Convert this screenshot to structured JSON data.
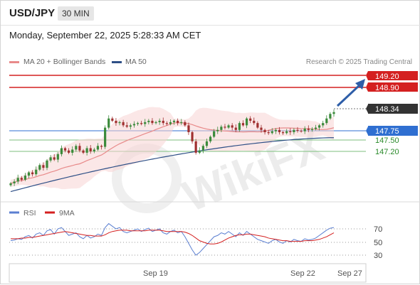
{
  "header": {
    "symbol": "USD/JPY",
    "timeframe": "30 MIN",
    "datetime": "Monday, September 22, 2025 5:28:33 AM CET"
  },
  "legend": {
    "items": [
      {
        "label": "MA 20 + Bollinger Bands",
        "color": "#e88a8a"
      },
      {
        "label": "MA 50",
        "color": "#2e4f86"
      }
    ],
    "credit": "Research © 2025 Trading Central"
  },
  "levels": {
    "resistance_2": {
      "value": "149.20",
      "color": "#d42020"
    },
    "resistance_1": {
      "value": "148.90",
      "color": "#d42020"
    },
    "last_price": {
      "value": "148.34",
      "color": "#333333"
    },
    "pivot": {
      "value": "147.75",
      "color": "#2f6fd1"
    },
    "support_1": {
      "value": "147.50",
      "color": "#2a8a2a"
    },
    "support_2": {
      "value": "147.20",
      "color": "#2a8a2a"
    }
  },
  "rsi_panel": {
    "legend": [
      {
        "label": "RSI",
        "color": "#5b7fd1"
      },
      {
        "label": "9MA",
        "color": "#d42020"
      }
    ],
    "levels": [
      "70",
      "50",
      "30"
    ]
  },
  "x_axis": {
    "labels": [
      "Sep 19",
      "Sep 22",
      "Sep 27"
    ]
  },
  "watermark": "WikiFX",
  "chart_data": {
    "type": "candlestick",
    "ylim": [
      146.5,
      149.3
    ],
    "closes": [
      146.78,
      146.82,
      146.9,
      146.86,
      146.95,
      147.02,
      146.98,
      147.08,
      147.18,
      147.12,
      147.28,
      147.35,
      147.3,
      147.42,
      147.55,
      147.5,
      147.45,
      147.52,
      147.6,
      147.5,
      147.45,
      147.55,
      147.48,
      147.52,
      147.6,
      147.58,
      148.0,
      148.2,
      148.15,
      148.1,
      148.12,
      148.05,
      148.02,
      148.05,
      148.08,
      148.1,
      148.08,
      148.12,
      148.15,
      148.1,
      148.12,
      148.15,
      148.1,
      148.08,
      148.12,
      148.15,
      148.1,
      148.12,
      148.05,
      147.9,
      147.7,
      147.45,
      147.5,
      147.6,
      147.7,
      147.8,
      147.92,
      147.95,
      148.02,
      148.0,
      148.05,
      148.0,
      147.95,
      148.1,
      148.05,
      148.2,
      148.15,
      148.1,
      148.0,
      147.95,
      147.9,
      147.88,
      147.92,
      147.95,
      147.9,
      147.88,
      147.92,
      147.9,
      147.95,
      147.93,
      147.92,
      147.98,
      147.95,
      147.97,
      148.0,
      148.05,
      148.1,
      148.2,
      148.3,
      148.34
    ],
    "ma50_start": 146.6,
    "ma50_end": 147.78,
    "rsi": [
      52,
      53,
      55,
      54,
      58,
      60,
      56,
      62,
      64,
      60,
      67,
      69,
      62,
      70,
      72,
      66,
      60,
      62,
      64,
      58,
      55,
      60,
      56,
      58,
      62,
      60,
      72,
      78,
      74,
      70,
      72,
      66,
      64,
      66,
      68,
      70,
      66,
      69,
      71,
      66,
      68,
      70,
      64,
      62,
      66,
      68,
      64,
      66,
      58,
      48,
      38,
      30,
      34,
      40,
      46,
      52,
      58,
      60,
      64,
      62,
      66,
      62,
      58,
      64,
      60,
      66,
      62,
      58,
      54,
      52,
      50,
      48,
      52,
      54,
      50,
      48,
      52,
      50,
      54,
      52,
      51,
      55,
      53,
      54,
      56,
      60,
      64,
      68,
      71,
      72
    ],
    "rsi_ma": [
      55,
      55,
      55,
      56,
      56,
      57,
      57,
      58,
      59,
      60,
      61,
      62,
      63,
      64,
      65,
      66,
      65,
      64,
      63,
      62,
      61,
      60,
      60,
      59,
      59,
      59,
      61,
      64,
      66,
      67,
      68,
      68,
      68,
      67,
      67,
      67,
      67,
      67,
      68,
      68,
      68,
      68,
      67,
      66,
      66,
      66,
      66,
      66,
      65,
      63,
      60,
      56,
      52,
      50,
      48,
      47,
      47,
      48,
      50,
      53,
      56,
      58,
      60,
      61,
      61,
      62,
      62,
      61,
      60,
      59,
      58,
      56,
      55,
      54,
      53,
      52,
      52,
      51,
      51,
      51,
      51,
      52,
      52,
      52,
      53,
      54,
      56,
      58,
      61,
      64
    ]
  }
}
